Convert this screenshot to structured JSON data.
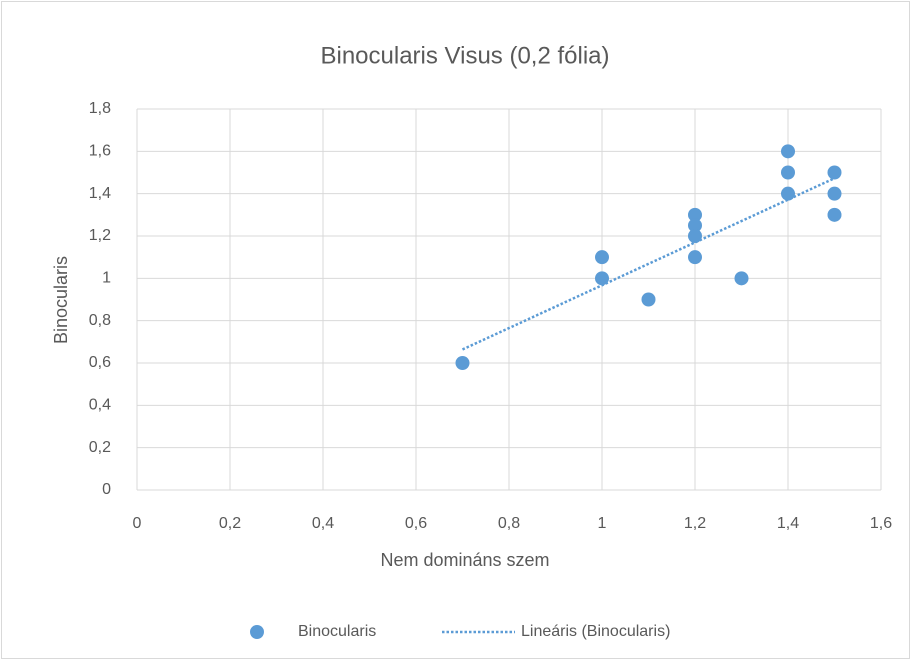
{
  "chart_data": {
    "type": "scatter",
    "title": "Binocularis Visus (0,2 fólia)",
    "xlabel": "Nem domináns szem",
    "ylabel": "Binocularis",
    "series": [
      {
        "name": "Binocularis",
        "color": "#5b9bd5",
        "x": [
          0.7,
          1,
          1,
          1.1,
          1.2,
          1.2,
          1.2,
          1.2,
          1.3,
          1.4,
          1.4,
          1.4,
          1.5,
          1.5,
          1.5
        ],
        "values": [
          0.6,
          1.1,
          1.0,
          0.9,
          1.3,
          1.25,
          1.2,
          1.1,
          1.0,
          1.6,
          1.5,
          1.4,
          1.5,
          1.4,
          1.3
        ],
        "trendline": {
          "type": "linear",
          "name": "Lineáris (Binocularis)"
        }
      }
    ],
    "xlim": [
      0,
      1.6
    ],
    "xticks": [
      0,
      {
        "value": 0.2,
        "label": "0,2"
      },
      {
        "value": 0.4,
        "label": "0,4"
      },
      {
        "value": 0.6,
        "label": "0,6"
      },
      {
        "value": 0.8,
        "label": "0,8"
      },
      1,
      {
        "value": 1.2,
        "label": "1,2"
      },
      {
        "value": 1.4,
        "label": "1,4"
      },
      {
        "value": 1.6,
        "label": "1,6"
      }
    ],
    "ylim": [
      0,
      1.8
    ],
    "yticks": [
      0,
      {
        "value": 0.2,
        "label": "0,2"
      },
      {
        "value": 0.4,
        "label": "0,4"
      },
      {
        "value": 0.6,
        "label": "0,6"
      },
      {
        "value": 0.8,
        "label": "0,8"
      },
      1,
      {
        "value": 1.2,
        "label": "1,2"
      },
      {
        "value": 1.4,
        "label": "1,4"
      },
      {
        "value": 1.6,
        "label": "1,6"
      },
      {
        "value": 1.8,
        "label": "1,8"
      }
    ],
    "grid": true,
    "legend": "bottom"
  }
}
